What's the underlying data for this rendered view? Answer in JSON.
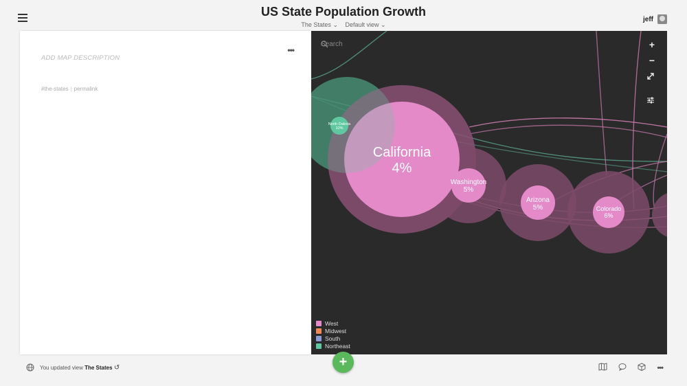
{
  "header": {
    "title": "US State Population Growth",
    "map_selector": "The States",
    "view_selector": "Default view",
    "user": "jeff"
  },
  "sidebar": {
    "description_placeholder": "ADD MAP DESCRIPTION",
    "tag": "#the-states",
    "permalink": "permalink"
  },
  "map": {
    "search_placeholder": "Search",
    "controls": {
      "zoom_in": "+",
      "zoom_out": "−"
    },
    "legend": [
      {
        "label": "West",
        "color": "#e58ac9"
      },
      {
        "label": "Midwest",
        "color": "#f0885a"
      },
      {
        "label": "South",
        "color": "#8d9bd6"
      },
      {
        "label": "Northeast",
        "color": "#5fc8a0"
      }
    ],
    "nodes": [
      {
        "name": "California",
        "value": "4%",
        "region": "West"
      },
      {
        "name": "Washington",
        "value": "5%",
        "region": "West"
      },
      {
        "name": "Arizona",
        "value": "5%",
        "region": "West"
      },
      {
        "name": "Colorado",
        "value": "6%",
        "region": "West"
      },
      {
        "name": "North Dakota",
        "value": "10%",
        "region": "Northeast"
      }
    ]
  },
  "footer": {
    "status_prefix": "You updated view",
    "status_view": "The States",
    "add_button": "+"
  }
}
